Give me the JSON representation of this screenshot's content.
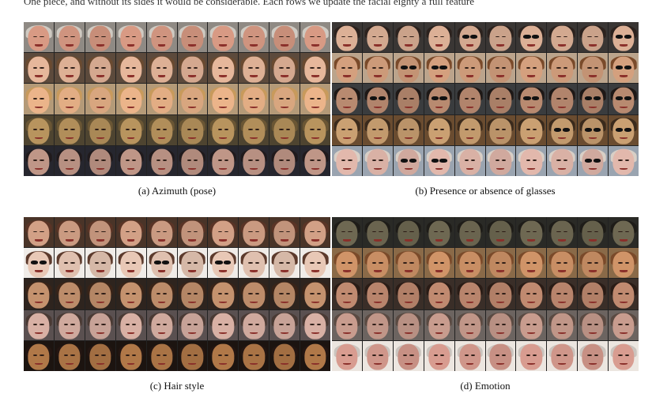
{
  "top_text": "One piece, and without its sides it would be considerable. Each rows we update the facial eighty a full feature",
  "panels": [
    {
      "caption": "(a) Azimuth (pose)",
      "rows": [
        {
          "skin": "#d89a84",
          "hair": "#cfcac2",
          "bg": "#8f8a84"
        },
        {
          "skin": "#e6b79b",
          "hair": "#6a4a30",
          "bg": "#5c4a3c"
        },
        {
          "skin": "#ebb48a",
          "hair": "#c89a5c",
          "bg": "#b49a78"
        },
        {
          "skin": "#b8945e",
          "hair": "#6a5634",
          "bg": "#4e4430"
        },
        {
          "skin": "#bf9687",
          "hair": "#201a1c",
          "bg": "#26262e"
        }
      ],
      "glasses": [
        [],
        [],
        [],
        [],
        []
      ]
    },
    {
      "caption": "(b) Presence or absence of glasses",
      "rows": [
        {
          "skin": "#dcb096",
          "hair": "#2c221e",
          "bg": "#3a3634"
        },
        {
          "skin": "#d4a07e",
          "hair": "#7a4a2a",
          "bg": "#bba48c"
        },
        {
          "skin": "#b88a70",
          "hair": "#1e1816",
          "bg": "#3a3c3e"
        },
        {
          "skin": "#caa072",
          "hair": "#3a2a1c",
          "bg": "#6a4c30"
        },
        {
          "skin": "#e2b8ac",
          "hair": "#d8cfc6",
          "bg": "#9aa4b0"
        }
      ],
      "glasses": [
        [
          4,
          6,
          9
        ],
        [
          2,
          3,
          9
        ],
        [
          1,
          3,
          6,
          8,
          9
        ],
        [
          7,
          8,
          9
        ],
        [
          2,
          3,
          8
        ]
      ]
    },
    {
      "caption": "(c) Hair style",
      "rows": [
        {
          "skin": "#d2a086",
          "hair": "#5a3426",
          "bg": "#4a3428"
        },
        {
          "skin": "#e8c8b6",
          "hair": "#5c3a2c",
          "bg": "#f0ece8"
        },
        {
          "skin": "#c4926e",
          "hair": "#3a2418",
          "bg": "#2e241e"
        },
        {
          "skin": "#d8b0a4",
          "hair": "#4a3a34",
          "bg": "#5a5050"
        },
        {
          "skin": "#b07848",
          "hair": "#241612",
          "bg": "#1c1410"
        }
      ],
      "glasses": [
        [],
        [
          0,
          4,
          6
        ],
        [],
        [],
        []
      ]
    },
    {
      "caption": "(d) Emotion",
      "rows": [
        {
          "skin": "#6e6852",
          "hair": "#1e1c18",
          "bg": "#2a2a26"
        },
        {
          "skin": "#d09468",
          "hair": "#7a4a2a",
          "bg": "#8a6a48"
        },
        {
          "skin": "#c08a70",
          "hair": "#2a1c16",
          "bg": "#3a2e28"
        },
        {
          "skin": "#c89c8e",
          "hair": "#5a4a42",
          "bg": "#6c6460"
        },
        {
          "skin": "#d89c90",
          "hair": "#cac4be",
          "bg": "#ece6e0"
        }
      ],
      "glasses": [
        [],
        [],
        [],
        [],
        []
      ]
    }
  ]
}
